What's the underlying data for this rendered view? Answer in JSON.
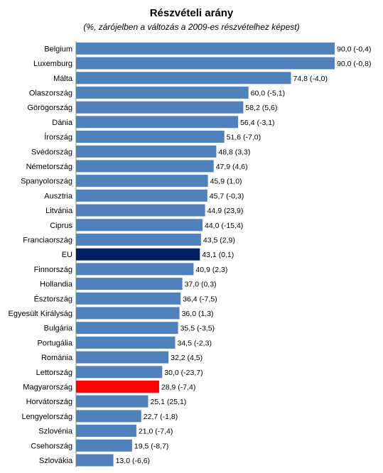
{
  "chart_data": {
    "type": "bar",
    "orientation": "horizontal",
    "title": "Részvételi arány",
    "subtitle": "(%, zárójelben a változás a 2009-es részvételhez képest)",
    "categories": [
      "Belgium",
      "Luxemburg",
      "Málta",
      "Olaszország",
      "Görögország",
      "Dánia",
      "Írország",
      "Svédország",
      "Németország",
      "Spanyolország",
      "Ausztria",
      "Litvánia",
      "Ciprus",
      "Franciaország",
      "EU",
      "Finnország",
      "Hollandia",
      "Észtország",
      "Egyesült Királyság",
      "Bulgária",
      "Portugália",
      "Románia",
      "Lettország",
      "Magyarország",
      "Horvátország",
      "Lengyelország",
      "Szlovénia",
      "Csehország",
      "Szlovákia"
    ],
    "values": [
      90.0,
      90.0,
      74.8,
      60.0,
      58.2,
      56.4,
      51.6,
      48.8,
      47.9,
      45.9,
      45.7,
      44.9,
      44.0,
      43.5,
      43.1,
      40.9,
      37.0,
      36.4,
      36.0,
      35.5,
      34.5,
      32.2,
      30.0,
      28.9,
      25.1,
      22.7,
      21.0,
      19.5,
      13.0
    ],
    "changes": [
      -0.4,
      -0.8,
      -4.0,
      -5.1,
      5.6,
      -3.1,
      -7.0,
      3.3,
      4.6,
      1.0,
      -0.3,
      23.9,
      -15.4,
      2.9,
      0.1,
      2.3,
      0.3,
      -7.5,
      1.3,
      -3.5,
      -2.3,
      4.5,
      -23.7,
      -7.4,
      25.1,
      -1.8,
      -7.4,
      -8.7,
      -6.6
    ],
    "data_labels": [
      "90,0 (-0,4)",
      "90,0 (-0,8)",
      "74,8 (-4,0)",
      "60,0 (-5,1)",
      "58,2 (5,6)",
      "56,4 (-3,1)",
      "51,6 (-7,0)",
      "48,8 (3,3)",
      "47,9 (4,6)",
      "45,9 (1,0)",
      "45,7 (-0,3)",
      "44,9 (23,9)",
      "44,0 (-15,4)",
      "43,5 (2,9)",
      "43,1 (0,1)",
      "40,9 (2,3)",
      "37,0 (0,3)",
      "36,4 (-7,5)",
      "36,0 (1,3)",
      "35,5 (-3,5)",
      "34,5 (-2,3)",
      "32,2 (4,5)",
      "30,0 (-23,7)",
      "28,9 (-7,4)",
      "25,1 (25,1)",
      "22,7 (-1,8)",
      "21,0 (-7,4)",
      "19,5 (-8,7)",
      "13,0 (-6,6)"
    ],
    "xlim": [
      0,
      90
    ],
    "grid": false,
    "legend": "none",
    "colors": {
      "default": "#4f81bd",
      "highlight_eu": "#002060",
      "highlight_hu": "#ff0000"
    },
    "highlights": {
      "EU": "highlight_eu",
      "Magyarország": "highlight_hu"
    }
  }
}
